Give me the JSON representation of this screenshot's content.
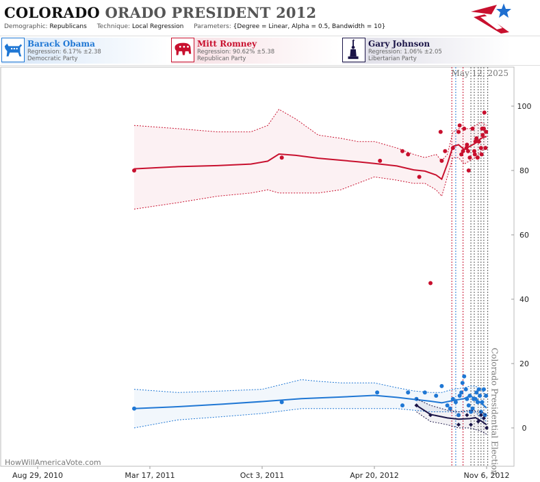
{
  "header": {
    "state": "COLORADO",
    "title_rest": "ORADO PRESIDENT 2012",
    "demographic_label": "Demographic:",
    "demographic_value": "Republicans",
    "technique_label": "Technique:",
    "technique_value": "Local Regression",
    "parameters_label": "Parameters:",
    "parameters_value": "{Degree = Linear, Alpha = 0.5, Bandwidth = 10}"
  },
  "candidates": [
    {
      "name": "Barack Obama",
      "regression": "Regression: 6.17% ±2.38",
      "party": "Democratic Party",
      "color": "#1f77d4",
      "icon": "donkey-icon"
    },
    {
      "name": "Mitt Romney",
      "regression": "Regression: 90.62% ±5.38",
      "party": "Republican Party",
      "color": "#c8102e",
      "icon": "elephant-icon"
    },
    {
      "name": "Gary Johnson",
      "regression": "Regression: 1.06% ±2.05",
      "party": "Libertarian Party",
      "color": "#1a1447",
      "icon": "liberty-icon"
    }
  ],
  "credit": "HowWillAmericaVote.com",
  "chart_data": {
    "type": "scatter",
    "date_label": "May 12, 2025",
    "event_label": "Colorado Presidential Election",
    "x_tick_labels": [
      "Aug 29, 2010",
      "Mar 17, 2011",
      "Oct 3, 2011",
      "Apr 20, 2012",
      "Nov 6, 2012"
    ],
    "x_ticks": [
      0,
      200,
      400,
      600,
      800
    ],
    "xlim": [
      0,
      800
    ],
    "ylim": [
      -12,
      112
    ],
    "y_ticks": [
      0,
      20,
      40,
      60,
      80,
      100
    ],
    "series": [
      {
        "name": "Mitt Romney",
        "color": "#c8102e",
        "points": [
          [
            172,
            80
          ],
          [
            435,
            84
          ],
          [
            610,
            83
          ],
          [
            650,
            86
          ],
          [
            660,
            85
          ],
          [
            680,
            78
          ],
          [
            700,
            45
          ],
          [
            718,
            92
          ],
          [
            720,
            83
          ],
          [
            726,
            86
          ],
          [
            740,
            87
          ],
          [
            750,
            92
          ],
          [
            752,
            94
          ],
          [
            755,
            85
          ],
          [
            758,
            86
          ],
          [
            760,
            93
          ],
          [
            764,
            87
          ],
          [
            765,
            88
          ],
          [
            767,
            86
          ],
          [
            768,
            80
          ],
          [
            770,
            84
          ],
          [
            775,
            93
          ],
          [
            778,
            86
          ],
          [
            779,
            85
          ],
          [
            780,
            89
          ],
          [
            782,
            90
          ],
          [
            784,
            84
          ],
          [
            786,
            89
          ],
          [
            790,
            87
          ],
          [
            791,
            85
          ],
          [
            792,
            93
          ],
          [
            793,
            91
          ],
          [
            795,
            93
          ],
          [
            796,
            98
          ],
          [
            798,
            87
          ],
          [
            799,
            92
          ]
        ],
        "fit": [
          [
            172,
            80.5
          ],
          [
            250,
            81.2
          ],
          [
            320,
            81.5
          ],
          [
            380,
            82.0
          ],
          [
            410,
            82.9
          ],
          [
            430,
            85.1
          ],
          [
            460,
            84.7
          ],
          [
            500,
            83.8
          ],
          [
            540,
            83.2
          ],
          [
            570,
            82.7
          ],
          [
            600,
            82.2
          ],
          [
            640,
            81.4
          ],
          [
            670,
            80.2
          ],
          [
            690,
            79.8
          ],
          [
            710,
            78.6
          ],
          [
            720,
            77.3
          ],
          [
            730,
            82.0
          ],
          [
            740,
            87.5
          ],
          [
            750,
            88.0
          ],
          [
            760,
            86.5
          ],
          [
            770,
            87.5
          ],
          [
            780,
            88.5
          ],
          [
            790,
            90.0
          ],
          [
            800,
            90.6
          ]
        ],
        "upper": [
          [
            172,
            94
          ],
          [
            250,
            93
          ],
          [
            320,
            92
          ],
          [
            380,
            92
          ],
          [
            410,
            94
          ],
          [
            430,
            99
          ],
          [
            460,
            96
          ],
          [
            500,
            91
          ],
          [
            540,
            90
          ],
          [
            570,
            89
          ],
          [
            600,
            89
          ],
          [
            640,
            87
          ],
          [
            670,
            85
          ],
          [
            690,
            84
          ],
          [
            710,
            85
          ],
          [
            720,
            83
          ],
          [
            730,
            85
          ],
          [
            740,
            92
          ],
          [
            750,
            93
          ],
          [
            760,
            93
          ],
          [
            770,
            93
          ],
          [
            780,
            94
          ],
          [
            790,
            95
          ],
          [
            800,
            94
          ]
        ],
        "lower": [
          [
            172,
            68
          ],
          [
            250,
            70
          ],
          [
            320,
            72
          ],
          [
            380,
            73
          ],
          [
            410,
            74
          ],
          [
            430,
            73
          ],
          [
            460,
            73
          ],
          [
            500,
            73
          ],
          [
            540,
            74
          ],
          [
            570,
            76
          ],
          [
            600,
            78
          ],
          [
            640,
            77
          ],
          [
            670,
            76
          ],
          [
            690,
            76
          ],
          [
            710,
            74
          ],
          [
            720,
            72
          ],
          [
            730,
            78
          ],
          [
            740,
            84
          ],
          [
            750,
            84
          ],
          [
            760,
            82
          ],
          [
            770,
            83
          ],
          [
            780,
            84
          ],
          [
            790,
            86
          ],
          [
            800,
            87
          ]
        ]
      },
      {
        "name": "Barack Obama",
        "color": "#1f77d4",
        "points": [
          [
            172,
            6
          ],
          [
            435,
            8
          ],
          [
            605,
            11
          ],
          [
            650,
            7
          ],
          [
            660,
            11
          ],
          [
            675,
            9
          ],
          [
            690,
            11
          ],
          [
            710,
            10
          ],
          [
            720,
            13
          ],
          [
            730,
            7
          ],
          [
            735,
            6
          ],
          [
            740,
            9
          ],
          [
            745,
            8
          ],
          [
            750,
            4
          ],
          [
            752,
            10
          ],
          [
            755,
            11
          ],
          [
            757,
            14
          ],
          [
            760,
            16
          ],
          [
            763,
            12
          ],
          [
            765,
            9
          ],
          [
            768,
            7
          ],
          [
            770,
            10
          ],
          [
            772,
            5
          ],
          [
            775,
            6
          ],
          [
            777,
            9
          ],
          [
            780,
            9
          ],
          [
            782,
            11
          ],
          [
            784,
            8
          ],
          [
            786,
            12
          ],
          [
            788,
            10
          ],
          [
            790,
            5
          ],
          [
            792,
            8
          ],
          [
            795,
            12
          ],
          [
            797,
            4
          ],
          [
            799,
            10
          ]
        ],
        "fit": [
          [
            172,
            6.0
          ],
          [
            250,
            6.6
          ],
          [
            330,
            7.4
          ],
          [
            400,
            8.2
          ],
          [
            470,
            9.1
          ],
          [
            540,
            9.6
          ],
          [
            600,
            10.1
          ],
          [
            640,
            9.5
          ],
          [
            670,
            8.9
          ],
          [
            700,
            8.3
          ],
          [
            720,
            7.8
          ],
          [
            740,
            8.5
          ],
          [
            760,
            9.1
          ],
          [
            770,
            10.0
          ],
          [
            780,
            9.1
          ],
          [
            790,
            7.7
          ],
          [
            800,
            6.2
          ]
        ],
        "upper": [
          [
            172,
            12
          ],
          [
            250,
            11
          ],
          [
            330,
            11.5
          ],
          [
            400,
            12
          ],
          [
            470,
            15
          ],
          [
            500,
            14.5
          ],
          [
            540,
            14
          ],
          [
            600,
            14
          ],
          [
            640,
            12.5
          ],
          [
            670,
            11.5
          ],
          [
            700,
            11
          ],
          [
            720,
            11
          ],
          [
            740,
            12
          ],
          [
            760,
            12.5
          ],
          [
            770,
            13
          ],
          [
            780,
            13
          ],
          [
            790,
            12
          ],
          [
            800,
            10
          ]
        ],
        "lower": [
          [
            172,
            0
          ],
          [
            250,
            2.5
          ],
          [
            330,
            3.5
          ],
          [
            400,
            4.5
          ],
          [
            470,
            6
          ],
          [
            500,
            6
          ],
          [
            540,
            6
          ],
          [
            600,
            6
          ],
          [
            640,
            6
          ],
          [
            670,
            5.5
          ],
          [
            700,
            5
          ],
          [
            720,
            5
          ],
          [
            740,
            5
          ],
          [
            760,
            5
          ],
          [
            770,
            5
          ],
          [
            780,
            5
          ],
          [
            790,
            3
          ],
          [
            800,
            2
          ]
        ]
      },
      {
        "name": "Gary Johnson",
        "color": "#1a1447",
        "points": [
          [
            675,
            7
          ],
          [
            700,
            4
          ],
          [
            750,
            1
          ],
          [
            765,
            4
          ],
          [
            772,
            1
          ],
          [
            785,
            2
          ],
          [
            790,
            4
          ],
          [
            795,
            3
          ],
          [
            800,
            0
          ]
        ],
        "fit": [
          [
            675,
            7
          ],
          [
            700,
            4.2
          ],
          [
            730,
            3.1
          ],
          [
            750,
            2.7
          ],
          [
            770,
            2.9
          ],
          [
            780,
            3.2
          ],
          [
            790,
            2.2
          ],
          [
            800,
            1.0
          ]
        ],
        "upper": [
          [
            675,
            9
          ],
          [
            700,
            7
          ],
          [
            730,
            5.5
          ],
          [
            750,
            5
          ],
          [
            770,
            5.5
          ],
          [
            790,
            5
          ],
          [
            800,
            4
          ]
        ],
        "lower": [
          [
            675,
            5
          ],
          [
            700,
            2
          ],
          [
            730,
            1
          ],
          [
            750,
            0
          ],
          [
            770,
            0
          ],
          [
            790,
            -1
          ],
          [
            800,
            -2
          ]
        ]
      }
    ],
    "event_lines": [
      {
        "x": 738,
        "color": "#c8102e"
      },
      {
        "x": 745,
        "color": "#1f77d4"
      },
      {
        "x": 758,
        "color": "#c8102e"
      },
      {
        "x": 772,
        "color": "#555555"
      },
      {
        "x": 778,
        "color": "#555555"
      },
      {
        "x": 785,
        "color": "#555555"
      },
      {
        "x": 790,
        "color": "#555555"
      },
      {
        "x": 795,
        "color": "#555555"
      },
      {
        "x": 802,
        "color": "#555555"
      }
    ]
  }
}
